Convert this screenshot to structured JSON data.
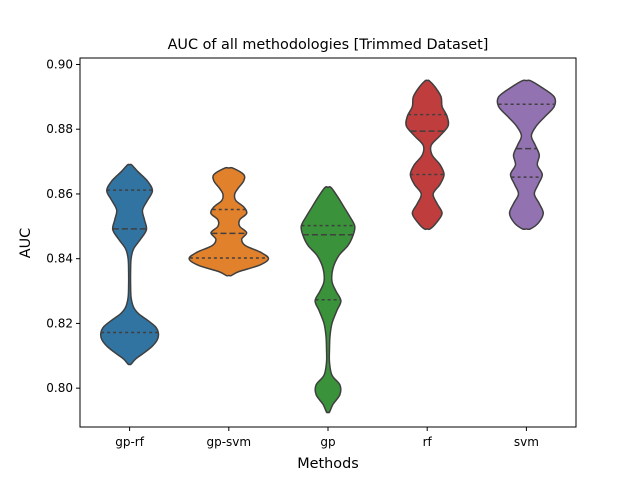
{
  "chart_data": {
    "type": "violin",
    "title": "AUC of all methodologies [Trimmed Dataset]",
    "xlabel": "Methods",
    "ylabel": "AUC",
    "ylim": [
      0.788,
      0.902
    ],
    "yticks": [
      0.8,
      0.82,
      0.84,
      0.86,
      0.88,
      0.9
    ],
    "ytick_labels": [
      "0.80",
      "0.82",
      "0.84",
      "0.86",
      "0.88",
      "0.90"
    ],
    "grid": false,
    "inner": "quartile",
    "categories": [
      "gp-rf",
      "gp-svm",
      "gp",
      "rf",
      "svm"
    ],
    "colors": [
      "#3274a1",
      "#e1812c",
      "#3a923a",
      "#c03d3e",
      "#9372b2"
    ],
    "violins": [
      {
        "name": "gp-rf",
        "profile": [
          [
            0.8074,
            0.003
          ],
          [
            0.809,
            0.012
          ],
          [
            0.811,
            0.03
          ],
          [
            0.813,
            0.046
          ],
          [
            0.815,
            0.056
          ],
          [
            0.817,
            0.058
          ],
          [
            0.819,
            0.052
          ],
          [
            0.821,
            0.036
          ],
          [
            0.823,
            0.018
          ],
          [
            0.825,
            0.008
          ],
          [
            0.828,
            0.003
          ],
          [
            0.832,
            0.002
          ],
          [
            0.836,
            0.002
          ],
          [
            0.84,
            0.003
          ],
          [
            0.843,
            0.008
          ],
          [
            0.846,
            0.022
          ],
          [
            0.849,
            0.034
          ],
          [
            0.852,
            0.03
          ],
          [
            0.855,
            0.026
          ],
          [
            0.858,
            0.036
          ],
          [
            0.861,
            0.046
          ],
          [
            0.864,
            0.036
          ],
          [
            0.867,
            0.016
          ],
          [
            0.869,
            0.004
          ]
        ],
        "quartiles": [
          0.8172,
          0.8492,
          0.8612
        ]
      },
      {
        "name": "gp-svm",
        "profile": [
          [
            0.8348,
            0.005
          ],
          [
            0.836,
            0.02
          ],
          [
            0.838,
            0.062
          ],
          [
            0.84,
            0.08
          ],
          [
            0.842,
            0.064
          ],
          [
            0.844,
            0.034
          ],
          [
            0.846,
            0.026
          ],
          [
            0.848,
            0.036
          ],
          [
            0.85,
            0.022
          ],
          [
            0.852,
            0.022
          ],
          [
            0.854,
            0.036
          ],
          [
            0.856,
            0.03
          ],
          [
            0.858,
            0.014
          ],
          [
            0.86,
            0.012
          ],
          [
            0.862,
            0.02
          ],
          [
            0.864,
            0.03
          ],
          [
            0.866,
            0.03
          ],
          [
            0.868,
            0.008
          ]
        ],
        "quartiles": [
          0.8402,
          0.8478,
          0.8552
        ]
      },
      {
        "name": "gp",
        "profile": [
          [
            0.7926,
            0.003
          ],
          [
            0.795,
            0.01
          ],
          [
            0.798,
            0.024
          ],
          [
            0.801,
            0.024
          ],
          [
            0.804,
            0.008
          ],
          [
            0.808,
            0.003
          ],
          [
            0.812,
            0.003
          ],
          [
            0.816,
            0.004
          ],
          [
            0.82,
            0.008
          ],
          [
            0.824,
            0.018
          ],
          [
            0.827,
            0.026
          ],
          [
            0.83,
            0.016
          ],
          [
            0.833,
            0.008
          ],
          [
            0.837,
            0.01
          ],
          [
            0.841,
            0.022
          ],
          [
            0.844,
            0.04
          ],
          [
            0.847,
            0.05
          ],
          [
            0.85,
            0.054
          ],
          [
            0.853,
            0.044
          ],
          [
            0.856,
            0.032
          ],
          [
            0.859,
            0.02
          ],
          [
            0.862,
            0.006
          ]
        ],
        "quartiles": [
          0.8273,
          0.8474,
          0.8502
        ]
      },
      {
        "name": "rf",
        "profile": [
          [
            0.8492,
            0.006
          ],
          [
            0.851,
            0.018
          ],
          [
            0.854,
            0.03
          ],
          [
            0.857,
            0.02
          ],
          [
            0.86,
            0.012
          ],
          [
            0.863,
            0.026
          ],
          [
            0.866,
            0.034
          ],
          [
            0.869,
            0.026
          ],
          [
            0.872,
            0.01
          ],
          [
            0.875,
            0.008
          ],
          [
            0.878,
            0.026
          ],
          [
            0.881,
            0.042
          ],
          [
            0.884,
            0.04
          ],
          [
            0.887,
            0.03
          ],
          [
            0.89,
            0.028
          ],
          [
            0.893,
            0.016
          ],
          [
            0.895,
            0.004
          ]
        ],
        "quartiles": [
          0.866,
          0.8794,
          0.8845
        ]
      },
      {
        "name": "svm",
        "profile": [
          [
            0.8492,
            0.008
          ],
          [
            0.851,
            0.024
          ],
          [
            0.854,
            0.034
          ],
          [
            0.857,
            0.026
          ],
          [
            0.86,
            0.016
          ],
          [
            0.863,
            0.024
          ],
          [
            0.866,
            0.032
          ],
          [
            0.869,
            0.022
          ],
          [
            0.872,
            0.026
          ],
          [
            0.875,
            0.018
          ],
          [
            0.878,
            0.01
          ],
          [
            0.881,
            0.02
          ],
          [
            0.884,
            0.038
          ],
          [
            0.887,
            0.056
          ],
          [
            0.89,
            0.056
          ],
          [
            0.893,
            0.03
          ],
          [
            0.895,
            0.008
          ]
        ],
        "quartiles": [
          0.8652,
          0.874,
          0.8877
        ]
      }
    ]
  }
}
